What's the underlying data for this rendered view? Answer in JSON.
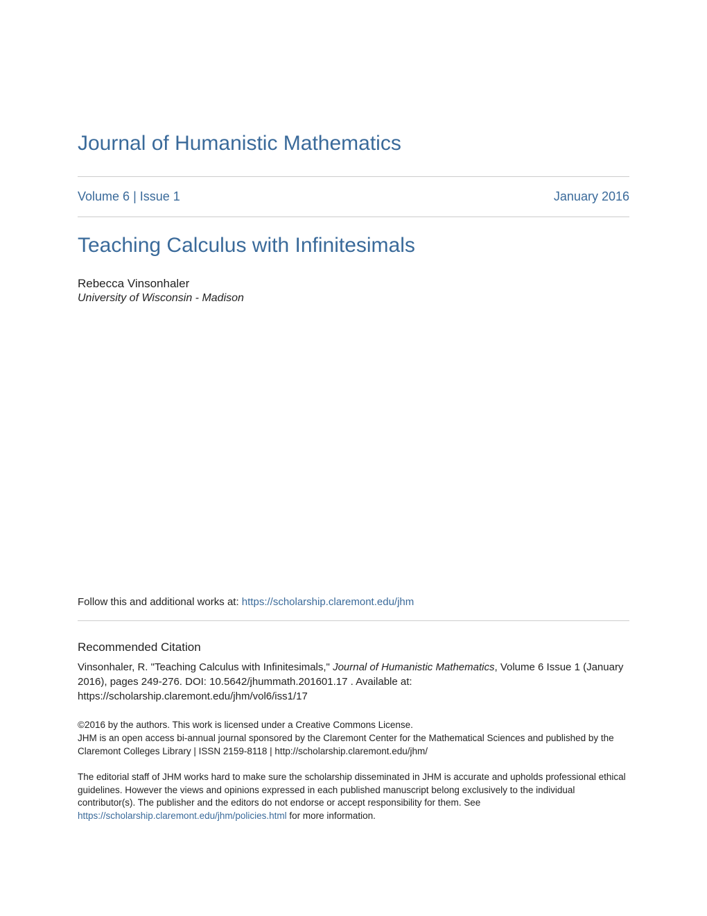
{
  "journal": {
    "title": "Journal of Humanistic Mathematics",
    "volume_label": "Volume 6",
    "separator": " | ",
    "issue_label": "Issue 1",
    "date": "January 2016"
  },
  "article": {
    "title": "Teaching Calculus with Infinitesimals",
    "author_name": "Rebecca Vinsonhaler",
    "author_affiliation": "University of Wisconsin - Madison"
  },
  "follow": {
    "prefix": "Follow this and additional works at: ",
    "url": "https://scholarship.claremont.edu/jhm"
  },
  "citation": {
    "heading": "Recommended Citation",
    "text_part1": "Vinsonhaler, R. \"Teaching Calculus with Infinitesimals,\" ",
    "journal_italic": "Journal of Humanistic Mathematics",
    "text_part2": ", Volume 6 Issue 1 (January 2016), pages 249-276. DOI: 10.5642/jhummath.201601.17 . Available at: https://scholarship.claremont.edu/jhm/vol6/iss1/17"
  },
  "copyright": {
    "line1": "©2016 by the authors. This work is licensed under a Creative Commons License.",
    "line2": "JHM is an open access bi-annual journal sponsored by the Claremont Center for the Mathematical Sciences and published by the Claremont Colleges Library | ISSN 2159-8118 | http://scholarship.claremont.edu/jhm/"
  },
  "disclaimer": {
    "text_part1": "The editorial staff of JHM works hard to make sure the scholarship disseminated in JHM is accurate and upholds professional ethical guidelines. However the views and opinions expressed in each published manuscript belong exclusively to the individual contributor(s). The publisher and the editors do not endorse or accept responsibility for them. See ",
    "policies_url": "https://scholarship.claremont.edu/jhm/policies.html",
    "text_part2": " for more information."
  },
  "colors": {
    "link_color": "#3a6a9a",
    "text_color": "#222222",
    "hr_color": "#cccccc",
    "background": "#ffffff"
  }
}
